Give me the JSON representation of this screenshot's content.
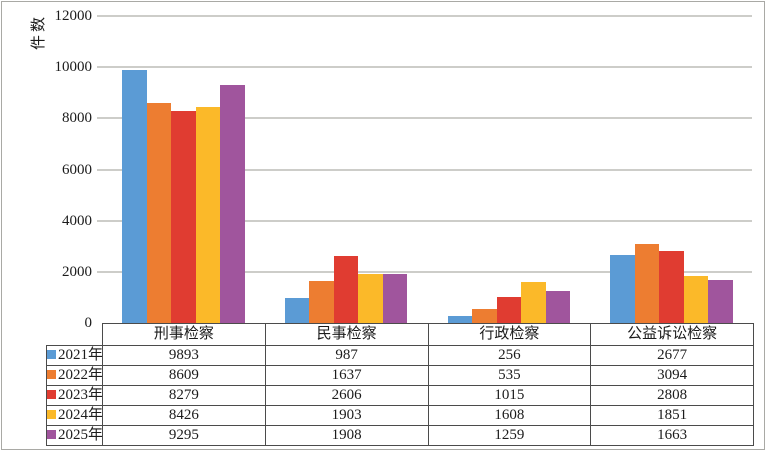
{
  "chart_data": {
    "type": "bar",
    "title": "",
    "ylabel": "件数",
    "xlabel": "",
    "ylim": [
      0,
      12000
    ],
    "ytick_step": 2000,
    "yticks": [
      0,
      2000,
      4000,
      6000,
      8000,
      10000,
      12000
    ],
    "grid": true,
    "legend_position": "table-left",
    "categories": [
      "刑事检察",
      "民事检察",
      "行政检察",
      "公益诉讼检察"
    ],
    "series": [
      {
        "name": "2021年",
        "color": "#5B9BD5",
        "values": [
          9893,
          987,
          256,
          2677
        ]
      },
      {
        "name": "2022年",
        "color": "#ED7D31",
        "values": [
          8609,
          1637,
          535,
          3094
        ]
      },
      {
        "name": "2023年",
        "color": "#E03C31",
        "values": [
          8279,
          2606,
          1015,
          2808
        ]
      },
      {
        "name": "2024年",
        "color": "#FBB929",
        "values": [
          8426,
          1903,
          1608,
          1851
        ]
      },
      {
        "name": "2025年",
        "color": "#A0559D",
        "values": [
          9295,
          1908,
          1259,
          1663
        ]
      }
    ],
    "colors": {
      "gridline": "#cdcdc9",
      "table_border": "#4b4b4b",
      "frame_border": "#a9a9a5",
      "text": "#1b1b1b"
    }
  }
}
